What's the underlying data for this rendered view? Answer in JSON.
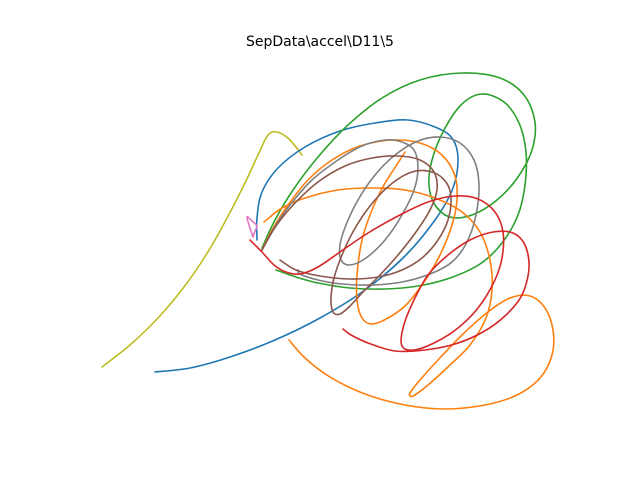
{
  "chart_data": {
    "type": "line",
    "title": "SepData\\accel\\D11\\5",
    "xlabel": "",
    "ylabel": "",
    "axes_visible": false,
    "grid": false,
    "legend": "none",
    "series": [
      {
        "color": "#bcbd22",
        "points": [
          [
            102,
            367
          ],
          [
            130,
            345
          ],
          [
            158,
            318
          ],
          [
            184,
            287
          ],
          [
            206,
            255
          ],
          [
            226,
            220
          ],
          [
            244,
            185
          ],
          [
            258,
            155
          ],
          [
            266,
            138
          ],
          [
            272,
            132
          ],
          [
            280,
            133
          ],
          [
            290,
            140
          ],
          [
            302,
            155
          ]
        ]
      },
      {
        "color": "#1f77b4",
        "points": [
          [
            155,
            372
          ],
          [
            190,
            368
          ],
          [
            230,
            357
          ],
          [
            275,
            340
          ],
          [
            320,
            318
          ],
          [
            365,
            290
          ],
          [
            405,
            256
          ],
          [
            435,
            220
          ],
          [
            453,
            188
          ],
          [
            458,
            158
          ],
          [
            452,
            138
          ],
          [
            435,
            127
          ],
          [
            408,
            120
          ],
          [
            375,
            123
          ],
          [
            340,
            131
          ],
          [
            305,
            147
          ],
          [
            278,
            168
          ],
          [
            262,
            192
          ],
          [
            257,
            218
          ],
          [
            257,
            240
          ]
        ]
      },
      {
        "color": "#2ca02c",
        "points": [
          [
            262,
            248
          ],
          [
            275,
            220
          ],
          [
            293,
            190
          ],
          [
            318,
            157
          ],
          [
            348,
            125
          ],
          [
            382,
            98
          ],
          [
            420,
            80
          ],
          [
            462,
            73
          ],
          [
            500,
            78
          ],
          [
            524,
            95
          ],
          [
            535,
            122
          ],
          [
            532,
            150
          ],
          [
            518,
            177
          ],
          [
            497,
            200
          ],
          [
            472,
            215
          ],
          [
            450,
            217
          ],
          [
            435,
            205
          ],
          [
            429,
            185
          ],
          [
            432,
            160
          ],
          [
            444,
            130
          ],
          [
            462,
            104
          ],
          [
            482,
            94
          ],
          [
            504,
            102
          ],
          [
            519,
            123
          ],
          [
            526,
            152
          ],
          [
            525,
            185
          ],
          [
            518,
            215
          ],
          [
            502,
            243
          ],
          [
            480,
            264
          ],
          [
            450,
            278
          ],
          [
            418,
            286
          ],
          [
            385,
            289
          ],
          [
            350,
            288
          ],
          [
            318,
            283
          ],
          [
            296,
            277
          ],
          [
            276,
            270
          ]
        ]
      },
      {
        "color": "#ff7f0e",
        "points": [
          [
            289,
            340
          ],
          [
            305,
            358
          ],
          [
            330,
            377
          ],
          [
            365,
            394
          ],
          [
            405,
            405
          ],
          [
            445,
            409
          ],
          [
            485,
            405
          ],
          [
            517,
            395
          ],
          [
            540,
            378
          ],
          [
            552,
            355
          ],
          [
            553,
            330
          ],
          [
            545,
            308
          ],
          [
            530,
            296
          ],
          [
            510,
            298
          ],
          [
            488,
            312
          ],
          [
            462,
            335
          ],
          [
            438,
            360
          ],
          [
            420,
            380
          ],
          [
            410,
            393
          ],
          [
            413,
            396
          ],
          [
            428,
            385
          ],
          [
            450,
            365
          ],
          [
            470,
            345
          ],
          [
            486,
            318
          ],
          [
            492,
            290
          ],
          [
            490,
            260
          ],
          [
            480,
            232
          ],
          [
            462,
            212
          ],
          [
            435,
            198
          ],
          [
            405,
            190
          ],
          [
            372,
            188
          ],
          [
            338,
            190
          ],
          [
            305,
            198
          ],
          [
            282,
            208
          ],
          [
            264,
            222
          ]
        ]
      },
      {
        "color": "#ff7f0e",
        "points": [
          [
            262,
            250
          ],
          [
            272,
            230
          ],
          [
            288,
            205
          ],
          [
            308,
            180
          ],
          [
            332,
            160
          ],
          [
            360,
            146
          ],
          [
            392,
            140
          ],
          [
            420,
            143
          ],
          [
            442,
            155
          ],
          [
            455,
            176
          ],
          [
            457,
            200
          ],
          [
            452,
            225
          ],
          [
            440,
            255
          ],
          [
            424,
            282
          ],
          [
            406,
            305
          ],
          [
            388,
            318
          ],
          [
            372,
            324
          ],
          [
            362,
            318
          ],
          [
            357,
            300
          ],
          [
            357,
            275
          ],
          [
            362,
            240
          ],
          [
            372,
            210
          ],
          [
            384,
            185
          ],
          [
            396,
            166
          ],
          [
            405,
            152
          ]
        ]
      },
      {
        "color": "#7f7f7f",
        "points": [
          [
            262,
            250
          ],
          [
            274,
            228
          ],
          [
            290,
            205
          ],
          [
            312,
            180
          ],
          [
            338,
            160
          ],
          [
            362,
            146
          ],
          [
            385,
            140
          ],
          [
            402,
            142
          ],
          [
            414,
            150
          ],
          [
            418,
            168
          ],
          [
            414,
            190
          ],
          [
            402,
            215
          ],
          [
            385,
            240
          ],
          [
            366,
            258
          ],
          [
            350,
            265
          ],
          [
            341,
            260
          ],
          [
            340,
            245
          ],
          [
            346,
            225
          ],
          [
            358,
            200
          ],
          [
            375,
            175
          ],
          [
            395,
            155
          ],
          [
            418,
            141
          ],
          [
            440,
            137
          ],
          [
            460,
            143
          ],
          [
            474,
            160
          ],
          [
            479,
            185
          ],
          [
            476,
            215
          ],
          [
            467,
            242
          ],
          [
            452,
            262
          ],
          [
            430,
            274
          ],
          [
            402,
            282
          ],
          [
            372,
            285
          ],
          [
            342,
            284
          ],
          [
            318,
            280
          ],
          [
            300,
            274
          ],
          [
            298,
            270
          ]
        ]
      },
      {
        "color": "#8c564b",
        "points": [
          [
            262,
            250
          ],
          [
            276,
            226
          ],
          [
            295,
            203
          ],
          [
            318,
            182
          ],
          [
            345,
            166
          ],
          [
            372,
            158
          ],
          [
            398,
            156
          ],
          [
            420,
            160
          ],
          [
            434,
            172
          ],
          [
            437,
            190
          ],
          [
            430,
            210
          ],
          [
            416,
            232
          ],
          [
            398,
            255
          ],
          [
            380,
            275
          ],
          [
            363,
            292
          ],
          [
            350,
            306
          ],
          [
            340,
            314
          ],
          [
            333,
            312
          ],
          [
            331,
            298
          ],
          [
            334,
            278
          ],
          [
            342,
            255
          ],
          [
            354,
            230
          ],
          [
            370,
            206
          ],
          [
            390,
            185
          ],
          [
            412,
            172
          ],
          [
            432,
            172
          ],
          [
            446,
            182
          ],
          [
            451,
            198
          ],
          [
            448,
            220
          ],
          [
            438,
            240
          ],
          [
            422,
            258
          ],
          [
            402,
            270
          ],
          [
            378,
            277
          ],
          [
            350,
            279
          ],
          [
            320,
            276
          ],
          [
            296,
            270
          ],
          [
            280,
            260
          ]
        ]
      },
      {
        "color": "#d62728",
        "points": [
          [
            250,
            240
          ],
          [
            262,
            252
          ],
          [
            274,
            265
          ],
          [
            286,
            272
          ],
          [
            300,
            274
          ],
          [
            318,
            267
          ],
          [
            340,
            252
          ],
          [
            368,
            233
          ],
          [
            398,
            216
          ],
          [
            428,
            202
          ],
          [
            455,
            196
          ],
          [
            478,
            199
          ],
          [
            495,
            212
          ],
          [
            503,
            232
          ],
          [
            502,
            258
          ],
          [
            494,
            282
          ],
          [
            478,
            308
          ],
          [
            458,
            328
          ],
          [
            436,
            342
          ],
          [
            414,
            350
          ],
          [
            402,
            346
          ],
          [
            403,
            328
          ],
          [
            413,
            302
          ],
          [
            428,
            275
          ],
          [
            448,
            255
          ],
          [
            470,
            240
          ],
          [
            493,
            232
          ],
          [
            513,
            233
          ],
          [
            525,
            245
          ],
          [
            529,
            268
          ],
          [
            522,
            295
          ],
          [
            506,
            315
          ],
          [
            483,
            332
          ],
          [
            455,
            344
          ],
          [
            425,
            350
          ],
          [
            395,
            351
          ],
          [
            368,
            343
          ],
          [
            351,
            335
          ],
          [
            343,
            329
          ]
        ]
      },
      {
        "color": "#e377c2",
        "points": [
          [
            253,
            237
          ],
          [
            250,
            228
          ],
          [
            247,
            217
          ],
          [
            252,
            221
          ],
          [
            257,
            226
          ],
          [
            255,
            231
          ],
          [
            253,
            237
          ]
        ]
      }
    ]
  }
}
